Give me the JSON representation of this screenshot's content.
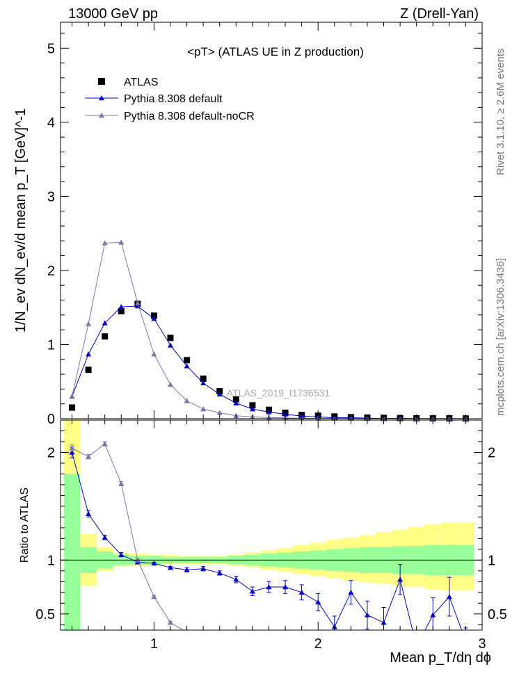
{
  "header": {
    "left": "13000 GeV pp",
    "right": "Z (Drell-Yan)"
  },
  "side_labels": {
    "rivet": "Rivet 3.1.10, ≥ 2.6M events",
    "mcplots": "mcplots.cern.ch [arXiv:1306.3436]"
  },
  "chart_data": {
    "type": "scatter",
    "title": "<pT> (ATLAS UE in Z production)",
    "watermark": "ATLAS_2019_I1736531",
    "xlabel": "Mean p_T/dη dϕ",
    "xlim": [
      0.43,
      3.0
    ],
    "x_ticks": [
      "1",
      "2",
      "3"
    ],
    "main": {
      "ylabel": "1/N_ev dN_ev/d mean p_T [GeV]^-1",
      "ylim": [
        0,
        5.35
      ],
      "y_ticks": [
        "0",
        "1",
        "2",
        "3",
        "4",
        "5"
      ],
      "legend_position": "top-left",
      "series": [
        {
          "name": "ATLAS",
          "marker": "square",
          "color": "#000000",
          "x": [
            0.5,
            0.6,
            0.7,
            0.8,
            0.9,
            1.0,
            1.1,
            1.2,
            1.3,
            1.4,
            1.5,
            1.6,
            1.7,
            1.8,
            1.9,
            2.0,
            2.1,
            2.2,
            2.3,
            2.4,
            2.5,
            2.6,
            2.7,
            2.8,
            2.9
          ],
          "y": [
            0.15,
            0.66,
            1.11,
            1.45,
            1.55,
            1.39,
            1.09,
            0.79,
            0.54,
            0.37,
            0.26,
            0.18,
            0.12,
            0.08,
            0.05,
            0.04,
            0.03,
            0.02,
            0.015,
            0.01,
            0.008,
            0.006,
            0.005,
            0.004,
            0.003
          ]
        },
        {
          "name": "Pythia 8.308 default",
          "marker": "triangle",
          "color": "#0000cc",
          "x": [
            0.5,
            0.6,
            0.7,
            0.8,
            0.9,
            1.0,
            1.1,
            1.2,
            1.3,
            1.4,
            1.5,
            1.6,
            1.7,
            1.8,
            1.9,
            2.0,
            2.1,
            2.2,
            2.3,
            2.4,
            2.5,
            2.6,
            2.7,
            2.8,
            2.9
          ],
          "y": [
            0.3,
            0.87,
            1.29,
            1.51,
            1.52,
            1.35,
            0.99,
            0.71,
            0.48,
            0.33,
            0.21,
            0.13,
            0.09,
            0.06,
            0.035,
            0.025,
            0.012,
            0.014,
            0.007,
            0.004,
            0.006,
            0.002,
            0.002,
            0.002,
            0.001
          ]
        },
        {
          "name": "Pythia 8.308 default-noCR",
          "marker": "triangle",
          "color": "#7777aa",
          "x": [
            0.5,
            0.6,
            0.7,
            0.8,
            0.9,
            1.0,
            1.1,
            1.2,
            1.3,
            1.4,
            1.5,
            1.6,
            1.7,
            1.8,
            1.9,
            2.0,
            2.1,
            2.2,
            2.3,
            2.4,
            2.5,
            2.6,
            2.7,
            2.8,
            2.9
          ],
          "y": [
            0.3,
            1.28,
            2.37,
            2.38,
            1.56,
            0.87,
            0.46,
            0.24,
            0.13,
            0.08,
            0.04,
            0.025,
            0.015,
            0.01,
            0.006,
            0.004,
            0.003,
            0.002,
            0.001,
            0.001,
            0.001,
            0.001,
            0.001,
            0.001,
            0.001
          ]
        }
      ]
    },
    "ratio": {
      "ylabel": "Ratio to ATLAS",
      "ylim": [
        0.35,
        2.3
      ],
      "y_ticks": [
        "0.5",
        "1",
        "2"
      ],
      "band_colors": {
        "inner": "#99ff99",
        "outer": "#ffff88"
      },
      "bands": {
        "x_edges": [
          0.45,
          0.55,
          0.65,
          0.75,
          0.85,
          0.95,
          1.05,
          1.15,
          1.25,
          1.35,
          1.45,
          1.55,
          1.65,
          1.75,
          1.85,
          1.95,
          2.05,
          2.15,
          2.25,
          2.35,
          2.45,
          2.55,
          2.65,
          2.75,
          2.85,
          2.95
        ],
        "inner_lo": [
          0.35,
          0.88,
          0.92,
          0.95,
          0.96,
          0.96,
          0.97,
          0.97,
          0.97,
          0.97,
          0.96,
          0.95,
          0.94,
          0.93,
          0.92,
          0.91,
          0.9,
          0.89,
          0.88,
          0.88,
          0.87,
          0.87,
          0.86,
          0.86,
          0.86
        ],
        "inner_hi": [
          1.8,
          1.12,
          1.08,
          1.05,
          1.04,
          1.04,
          1.03,
          1.03,
          1.03,
          1.03,
          1.04,
          1.05,
          1.06,
          1.07,
          1.08,
          1.09,
          1.1,
          1.11,
          1.12,
          1.12,
          1.13,
          1.13,
          1.14,
          1.14,
          1.14
        ],
        "outer_lo": [
          0.35,
          0.76,
          0.9,
          0.94,
          0.95,
          0.95,
          0.96,
          0.96,
          0.96,
          0.96,
          0.95,
          0.93,
          0.91,
          0.89,
          0.87,
          0.85,
          0.83,
          0.81,
          0.79,
          0.78,
          0.76,
          0.75,
          0.73,
          0.72,
          0.72
        ],
        "outer_hi": [
          2.3,
          1.24,
          1.12,
          1.07,
          1.06,
          1.05,
          1.05,
          1.04,
          1.04,
          1.04,
          1.05,
          1.07,
          1.09,
          1.11,
          1.14,
          1.16,
          1.19,
          1.21,
          1.23,
          1.26,
          1.28,
          1.31,
          1.33,
          1.35,
          1.35
        ]
      },
      "series": [
        {
          "name": "Pythia 8.308 default",
          "color": "#0000cc",
          "x": [
            0.5,
            0.6,
            0.7,
            0.8,
            0.9,
            1.0,
            1.1,
            1.2,
            1.3,
            1.4,
            1.5,
            1.6,
            1.7,
            1.8,
            1.9,
            2.0,
            2.1,
            2.2,
            2.3,
            2.4,
            2.5,
            2.6,
            2.7,
            2.8,
            2.9
          ],
          "y": [
            2.0,
            1.43,
            1.21,
            1.05,
            0.98,
            0.97,
            0.93,
            0.91,
            0.92,
            0.88,
            0.82,
            0.71,
            0.75,
            0.75,
            0.7,
            0.61,
            0.38,
            0.7,
            0.49,
            0.42,
            0.82,
            0.2,
            0.49,
            0.66,
            0.25
          ],
          "err": [
            0.05,
            0.03,
            0.02,
            0.02,
            0.01,
            0.01,
            0.01,
            0.02,
            0.02,
            0.02,
            0.03,
            0.04,
            0.05,
            0.06,
            0.07,
            0.08,
            0.1,
            0.11,
            0.13,
            0.14,
            0.14,
            0.12,
            0.16,
            0.18,
            0.12
          ]
        },
        {
          "name": "Pythia 8.308 default-noCR",
          "color": "#7777aa",
          "x": [
            0.5,
            0.6,
            0.7,
            0.8,
            0.9,
            1.0,
            1.1,
            1.2
          ],
          "y": [
            2.04,
            1.96,
            2.08,
            1.71,
            1.0,
            0.66,
            0.42,
            0.33
          ],
          "err": [
            0.03,
            0.02,
            0.02,
            0.02,
            0.01,
            0.01,
            0.01,
            0.01
          ]
        }
      ]
    }
  }
}
